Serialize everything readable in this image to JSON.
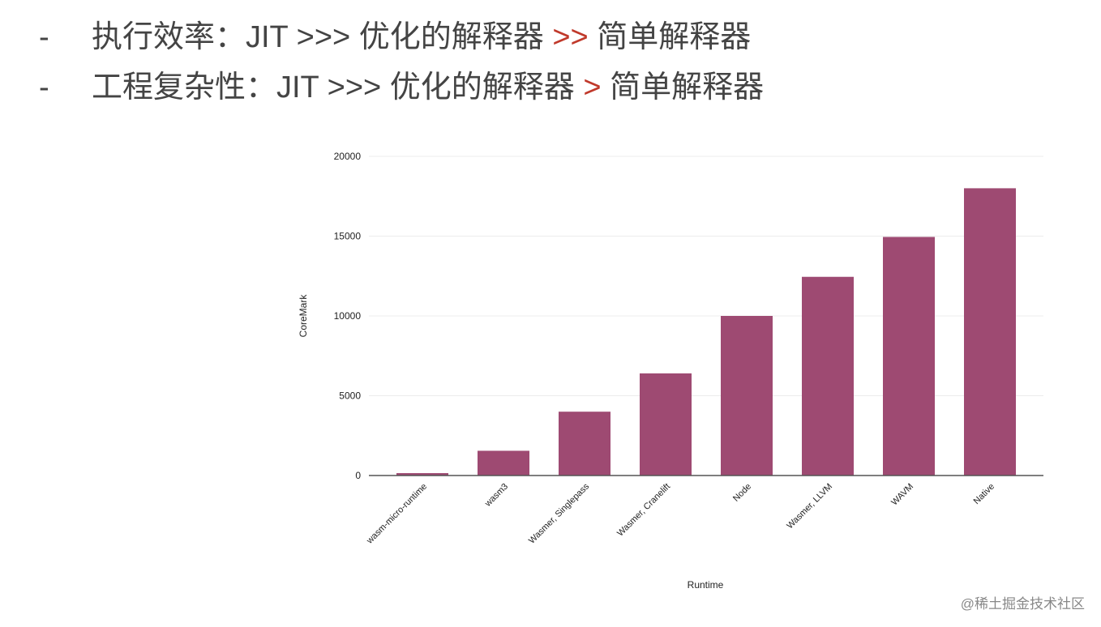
{
  "bullets": [
    {
      "dash": "-",
      "text": "执行效率：JIT >>> 优化的解释器",
      "emph": ">>",
      "tail": "简单解释器"
    },
    {
      "dash": "-",
      "text": "工程复杂性：JIT >>> 优化的解释器",
      "emph": ">",
      "tail": "简单解释器"
    }
  ],
  "chart_data": {
    "type": "bar",
    "categories": [
      "wasm-micro-runtime",
      "wasm3",
      "Wasmer, Singlepass",
      "Wasmer, Cranelift",
      "Node",
      "Wasmer, LLVM",
      "WAVM",
      "Native"
    ],
    "values": [
      150,
      1550,
      4000,
      6400,
      10000,
      12450,
      14950,
      18000
    ],
    "color": "#9e4a72",
    "y_label": "CoreMark",
    "x_label": "Runtime",
    "ylim": [
      0,
      20000
    ],
    "yticks": [
      0,
      5000,
      10000,
      15000,
      20000
    ],
    "grid": true
  },
  "watermark": "@稀土掘金技术社区"
}
